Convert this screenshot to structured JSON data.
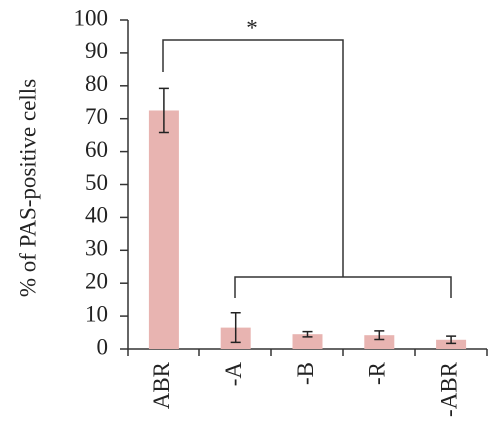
{
  "chart_data": {
    "type": "bar",
    "y_label": "% of PAS-positive cells",
    "annotation": "*",
    "categories": [
      "ABR",
      "-A",
      "-B",
      "-R",
      "-ABR"
    ],
    "values": [
      72.5,
      6.5,
      4.5,
      4.2,
      2.8
    ],
    "errors": [
      6.7,
      4.5,
      0.8,
      1.3,
      1.1
    ],
    "color": "#e8b4b1",
    "ylim": [
      0,
      100
    ],
    "yticks": [
      0,
      10,
      20,
      30,
      40,
      50,
      60,
      70,
      80,
      90,
      100
    ],
    "grid": false
  }
}
